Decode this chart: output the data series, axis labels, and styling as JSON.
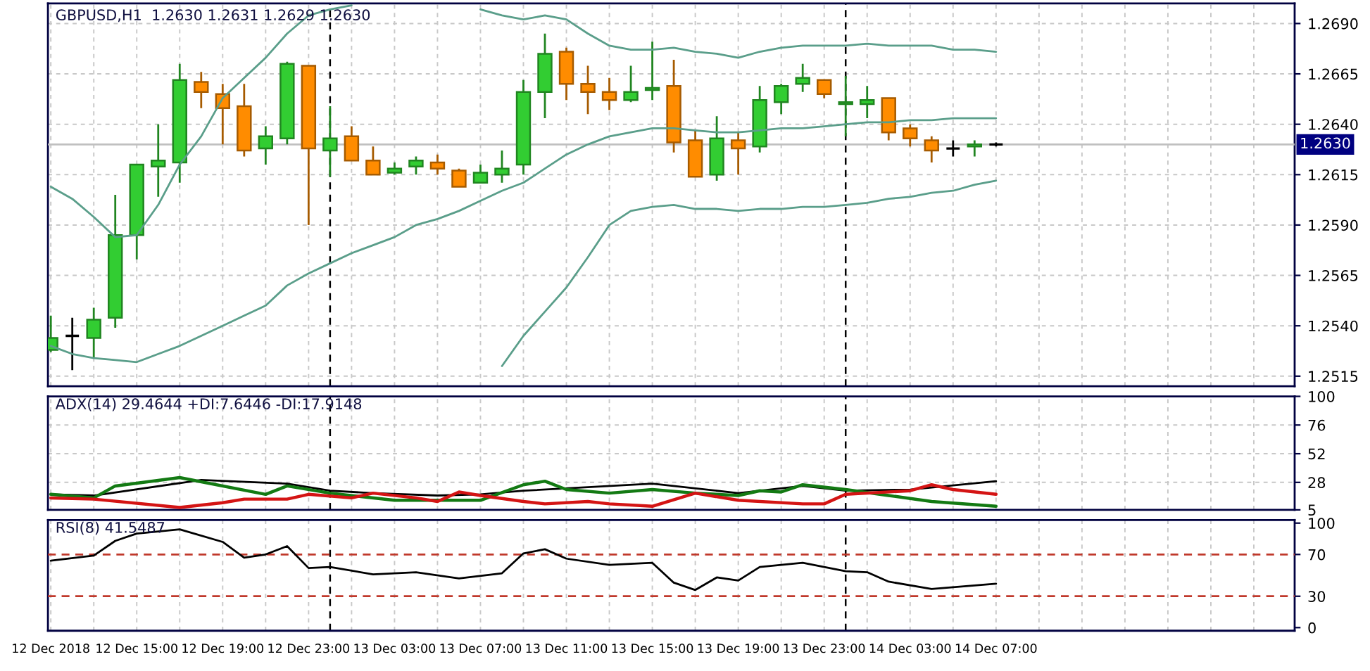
{
  "chart_data": [
    {
      "type": "candlestick",
      "title": "GBPUSD,H1  1.2630 1.2631 1.2629 1.2630",
      "x": [
        "2018-12-12T11:00",
        "2018-12-12T12:00",
        "2018-12-12T13:00",
        "2018-12-12T14:00",
        "2018-12-12T15:00",
        "2018-12-12T16:00",
        "2018-12-12T17:00",
        "2018-12-12T18:00",
        "2018-12-12T19:00",
        "2018-12-12T20:00",
        "2018-12-12T21:00",
        "2018-12-12T22:00",
        "2018-12-12T23:00",
        "2018-12-13T00:00",
        "2018-12-13T01:00",
        "2018-12-13T02:00",
        "2018-12-13T03:00",
        "2018-12-13T04:00",
        "2018-12-13T05:00",
        "2018-12-13T06:00",
        "2018-12-13T07:00",
        "2018-12-13T08:00",
        "2018-12-13T09:00",
        "2018-12-13T10:00",
        "2018-12-13T11:00",
        "2018-12-13T12:00",
        "2018-12-13T13:00",
        "2018-12-13T14:00",
        "2018-12-13T15:00",
        "2018-12-13T16:00",
        "2018-12-13T17:00",
        "2018-12-13T18:00",
        "2018-12-13T19:00",
        "2018-12-13T20:00",
        "2018-12-13T21:00",
        "2018-12-13T22:00",
        "2018-12-13T23:00",
        "2018-12-14T00:00",
        "2018-12-14T01:00",
        "2018-12-14T02:00",
        "2018-12-14T03:00",
        "2018-12-14T04:00",
        "2018-12-14T05:00",
        "2018-12-14T06:00",
        "2018-12-14T07:00"
      ],
      "ohlc": [
        [
          1.2528,
          1.2545,
          1.2527,
          1.2534
        ],
        [
          1.2535,
          1.2544,
          1.2518,
          1.2535
        ],
        [
          1.2534,
          1.2549,
          1.2524,
          1.2543
        ],
        [
          1.2544,
          1.2605,
          1.2539,
          1.2585
        ],
        [
          1.2585,
          1.262,
          1.2573,
          1.262
        ],
        [
          1.2619,
          1.264,
          1.2604,
          1.2622
        ],
        [
          1.2621,
          1.267,
          1.2611,
          1.2662
        ],
        [
          1.2661,
          1.2666,
          1.2648,
          1.2656
        ],
        [
          1.2655,
          1.266,
          1.263,
          1.2648
        ],
        [
          1.2649,
          1.266,
          1.2624,
          1.2627
        ],
        [
          1.2628,
          1.2639,
          1.262,
          1.2634
        ],
        [
          1.2633,
          1.2671,
          1.263,
          1.267
        ],
        [
          1.2669,
          1.2669,
          1.259,
          1.2628
        ],
        [
          1.2627,
          1.2649,
          1.2614,
          1.2633
        ],
        [
          1.2634,
          1.2639,
          1.2622,
          1.2622
        ],
        [
          1.2622,
          1.2629,
          1.2615,
          1.2615
        ],
        [
          1.2616,
          1.2621,
          1.2615,
          1.2618
        ],
        [
          1.2619,
          1.2624,
          1.2615,
          1.2622
        ],
        [
          1.2621,
          1.2625,
          1.2615,
          1.2618
        ],
        [
          1.2617,
          1.2618,
          1.2609,
          1.2609
        ],
        [
          1.2611,
          1.262,
          1.2611,
          1.2616
        ],
        [
          1.2615,
          1.2627,
          1.2611,
          1.2618
        ],
        [
          1.262,
          1.2662,
          1.2615,
          1.2656
        ],
        [
          1.2656,
          1.2685,
          1.2643,
          1.2675
        ],
        [
          1.2676,
          1.2678,
          1.2652,
          1.266
        ],
        [
          1.266,
          1.2669,
          1.2645,
          1.2656
        ],
        [
          1.2656,
          1.2663,
          1.2647,
          1.2652
        ],
        [
          1.2652,
          1.2669,
          1.2651,
          1.2656
        ],
        [
          1.2657,
          1.2681,
          1.2652,
          1.2658
        ],
        [
          1.2659,
          1.2672,
          1.2626,
          1.2631
        ],
        [
          1.2632,
          1.2637,
          1.2614,
          1.2614
        ],
        [
          1.2615,
          1.2644,
          1.2612,
          1.2633
        ],
        [
          1.2632,
          1.2636,
          1.2615,
          1.2628
        ],
        [
          1.2629,
          1.2659,
          1.2626,
          1.2652
        ],
        [
          1.2651,
          1.266,
          1.2645,
          1.2659
        ],
        [
          1.266,
          1.267,
          1.2656,
          1.2663
        ],
        [
          1.2662,
          1.2662,
          1.2653,
          1.2655
        ],
        [
          1.265,
          1.2664,
          1.2634,
          1.2651
        ],
        [
          1.265,
          1.2659,
          1.2643,
          1.2652
        ],
        [
          1.2653,
          1.2653,
          1.2632,
          1.2636
        ],
        [
          1.2638,
          1.264,
          1.2629,
          1.2633
        ],
        [
          1.2632,
          1.2634,
          1.2621,
          1.2627
        ],
        [
          1.2628,
          1.2632,
          1.2624,
          1.2628
        ],
        [
          1.2629,
          1.2632,
          1.2624,
          1.263
        ],
        [
          1.263,
          1.2631,
          1.2629,
          1.263
        ]
      ],
      "colors": [
        "#32cd32",
        "#000000",
        "#32cd32",
        "#32cd32",
        "#32cd32",
        "#32cd32",
        "#32cd32",
        "#ff8c00",
        "#ff8c00",
        "#ff8c00",
        "#32cd32",
        "#32cd32",
        "#ff8c00",
        "#32cd32",
        "#ff8c00",
        "#ff8c00",
        "#32cd32",
        "#32cd32",
        "#ff8c00",
        "#ff8c00",
        "#32cd32",
        "#32cd32",
        "#32cd32",
        "#32cd32",
        "#ff8c00",
        "#ff8c00",
        "#ff8c00",
        "#32cd32",
        "#32cd32",
        "#ff8c00",
        "#ff8c00",
        "#32cd32",
        "#ff8c00",
        "#32cd32",
        "#32cd32",
        "#32cd32",
        "#ff8c00",
        "#32cd32",
        "#32cd32",
        "#ff8c00",
        "#ff8c00",
        "#ff8c00",
        "#000000",
        "#32cd32",
        "#000000"
      ],
      "series": [
        {
          "type": "line",
          "color": "#5a9e8a",
          "values": [
            1.2609,
            1.2603,
            1.2594,
            1.2584,
            1.2585,
            1.26,
            1.262,
            1.2634,
            1.2653,
            1.2663,
            1.2673,
            1.2685,
            1.2694,
            1.2697,
            1.2699,
            null,
            null,
            null,
            null,
            null,
            1.2697,
            1.2694,
            1.2692,
            1.2694,
            1.2692,
            1.2685,
            1.2679,
            1.2677,
            1.2677,
            1.2678,
            1.2676,
            1.2675,
            1.2673,
            1.2676,
            1.2678,
            1.2679,
            1.2679,
            1.2679,
            1.268,
            1.2679,
            1.2679,
            1.2679,
            1.2677,
            1.2677,
            1.2676
          ]
        },
        {
          "type": "line",
          "color": "#5a9e8a",
          "values": [
            1.253,
            1.2526,
            1.2524,
            1.2523,
            1.2522,
            1.2526,
            1.253,
            1.2535,
            1.254,
            1.2545,
            1.255,
            1.256,
            1.2566,
            1.2571,
            1.2576,
            1.258,
            1.2584,
            1.259,
            1.2593,
            1.2597,
            1.2602,
            1.2607,
            1.2611,
            1.2618,
            1.2625,
            1.263,
            1.2634,
            1.2636,
            1.2638,
            1.2638,
            1.2637,
            1.2636,
            1.2636,
            1.2637,
            1.2638,
            1.2638,
            1.2639,
            1.264,
            1.2641,
            1.2641,
            1.2642,
            1.2642,
            1.2643,
            1.2643,
            1.2643
          ]
        },
        {
          "type": "line",
          "color": "#5a9e8a",
          "values": [
            null,
            null,
            null,
            null,
            null,
            null,
            null,
            null,
            null,
            null,
            null,
            null,
            null,
            null,
            null,
            null,
            null,
            null,
            null,
            null,
            null,
            1.252,
            1.2535,
            1.2547,
            1.2559,
            1.2574,
            1.259,
            1.2597,
            1.2599,
            1.26,
            1.2598,
            1.2598,
            1.2597,
            1.2598,
            1.2598,
            1.2599,
            1.2599,
            1.26,
            1.2601,
            1.2603,
            1.2604,
            1.2606,
            1.2607,
            1.261,
            1.2612
          ]
        }
      ],
      "xlim": [
        "2018-12-12T10:52",
        "2018-12-14T20:54"
      ],
      "xticks": [
        {
          "value": "2018-12-12T11:00",
          "label": null
        },
        {
          "value": "2018-12-12T13:00",
          "label": null
        },
        {
          "value": "2018-12-12T15:00",
          "label": null
        },
        {
          "value": "2018-12-12T17:00",
          "label": null
        },
        {
          "value": "2018-12-12T19:00",
          "label": null
        },
        {
          "value": "2018-12-12T21:00",
          "label": null
        },
        {
          "value": "2018-12-12T23:00",
          "label": null
        },
        {
          "value": "2018-12-13T01:00",
          "label": null
        },
        {
          "value": "2018-12-13T03:00",
          "label": null
        },
        {
          "value": "2018-12-13T05:00",
          "label": null
        },
        {
          "value": "2018-12-13T07:00",
          "label": null
        },
        {
          "value": "2018-12-13T09:00",
          "label": null
        },
        {
          "value": "2018-12-13T11:00",
          "label": null
        },
        {
          "value": "2018-12-13T13:00",
          "label": null
        },
        {
          "value": "2018-12-13T15:00",
          "label": null
        },
        {
          "value": "2018-12-13T17:00",
          "label": null
        },
        {
          "value": "2018-12-13T19:00",
          "label": null
        },
        {
          "value": "2018-12-13T21:00",
          "label": null
        },
        {
          "value": "2018-12-13T23:00",
          "label": null
        },
        {
          "value": "2018-12-14T01:00",
          "label": null
        },
        {
          "value": "2018-12-14T03:00",
          "label": null
        },
        {
          "value": "2018-12-14T05:00",
          "label": null
        },
        {
          "value": "2018-12-14T07:00",
          "label": null
        },
        {
          "value": "2018-12-14T09:00",
          "label": null
        },
        {
          "value": "2018-12-14T11:00",
          "label": null
        },
        {
          "value": "2018-12-14T13:00",
          "label": null
        },
        {
          "value": "2018-12-14T15:00",
          "label": null
        },
        {
          "value": "2018-12-14T17:00",
          "label": null
        },
        {
          "value": "2018-12-14T19:00",
          "label": null
        }
      ],
      "ylim": [
        1.251,
        1.27
      ],
      "yticks": [
        {
          "value": 1.2515,
          "label": "1.2515"
        },
        {
          "value": 1.254,
          "label": "1.2540"
        },
        {
          "value": 1.2565,
          "label": "1.2565"
        },
        {
          "value": 1.259,
          "label": "1.2590"
        },
        {
          "value": 1.2615,
          "label": "1.2615"
        },
        {
          "value": 1.264,
          "label": "1.2640"
        },
        {
          "value": 1.2665,
          "label": "1.2665"
        },
        {
          "value": 1.269,
          "label": "1.2690"
        }
      ],
      "ref_lines": [
        {
          "axis": "x",
          "value": "2018-12-13T00:00",
          "color": "#000000",
          "line_style": "dashed"
        },
        {
          "axis": "x",
          "value": "2018-12-14T00:00",
          "color": "#000000",
          "line_style": "dashed"
        },
        {
          "axis": "y",
          "value": 1.263,
          "label": "1.2630",
          "color": "#c0c0c0"
        }
      ],
      "grid": true,
      "tick_labels": "y"
    },
    {
      "type": "line",
      "title": "ADX(14) 29.4644 +DI:7.6446 -DI:17.9148",
      "series": [
        {
          "color": "#000000",
          "x": [
            "2018-12-12T11:00",
            "2018-12-12T13:00",
            "2018-12-12T18:00",
            "2018-12-12T22:00",
            "2018-12-13T00:00",
            "2018-12-13T02:00",
            "2018-12-13T05:00",
            "2018-12-13T07:00",
            "2018-12-13T09:00",
            "2018-12-13T15:00",
            "2018-12-13T19:00",
            "2018-12-13T22:00",
            "2018-12-14T00:00",
            "2018-12-14T03:00",
            "2018-12-14T07:00"
          ],
          "values": [
            18,
            17,
            30,
            27,
            21,
            19,
            17,
            18,
            21,
            27,
            19,
            25,
            21,
            22,
            29
          ]
        },
        {
          "color": "#137a13",
          "x": [
            "2018-12-12T11:00",
            "2018-12-12T13:00",
            "2018-12-12T14:00",
            "2018-12-12T17:00",
            "2018-12-12T21:00",
            "2018-12-12T22:00",
            "2018-12-13T00:00",
            "2018-12-13T03:00",
            "2018-12-13T07:00",
            "2018-12-13T09:00",
            "2018-12-13T10:00",
            "2018-12-13T11:00",
            "2018-12-13T13:00",
            "2018-12-13T15:00",
            "2018-12-13T17:00",
            "2018-12-13T19:00",
            "2018-12-13T20:00",
            "2018-12-13T21:00",
            "2018-12-13T22:00",
            "2018-12-14T00:00",
            "2018-12-14T02:00",
            "2018-12-14T04:00",
            "2018-12-14T07:00"
          ],
          "values": [
            18,
            15,
            25,
            32,
            18,
            25,
            19,
            13,
            13,
            26,
            29,
            22,
            19,
            22,
            19,
            17,
            21,
            20,
            26,
            22,
            17,
            12,
            8
          ]
        },
        {
          "color": "#d41414",
          "x": [
            "2018-12-12T11:00",
            "2018-12-12T13:00",
            "2018-12-12T17:00",
            "2018-12-12T19:00",
            "2018-12-12T20:00",
            "2018-12-12T22:00",
            "2018-12-12T23:00",
            "2018-12-13T01:00",
            "2018-12-13T02:00",
            "2018-12-13T04:00",
            "2018-12-13T05:00",
            "2018-12-13T06:00",
            "2018-12-13T07:00",
            "2018-12-13T09:00",
            "2018-12-13T10:00",
            "2018-12-13T12:00",
            "2018-12-13T13:00",
            "2018-12-13T15:00",
            "2018-12-13T17:00",
            "2018-12-13T19:00",
            "2018-12-13T22:00",
            "2018-12-13T23:00",
            "2018-12-14T00:00",
            "2018-12-14T03:00",
            "2018-12-14T04:00",
            "2018-12-14T05:00",
            "2018-12-14T07:00"
          ],
          "values": [
            15,
            14,
            7,
            11,
            14,
            14,
            18,
            15,
            19,
            15,
            12,
            20,
            17,
            12,
            10,
            12,
            10,
            8,
            19,
            13,
            10,
            10,
            18,
            21,
            26,
            22,
            18
          ]
        }
      ],
      "xlim": [
        "2018-12-12T10:52",
        "2018-12-14T20:54"
      ],
      "xticks": [
        {
          "value": "2018-12-12T11:00",
          "label": null
        },
        {
          "value": "2018-12-12T13:00",
          "label": null
        },
        {
          "value": "2018-12-12T15:00",
          "label": null
        },
        {
          "value": "2018-12-12T17:00",
          "label": null
        },
        {
          "value": "2018-12-12T19:00",
          "label": null
        },
        {
          "value": "2018-12-12T21:00",
          "label": null
        },
        {
          "value": "2018-12-12T23:00",
          "label": null
        },
        {
          "value": "2018-12-13T01:00",
          "label": null
        },
        {
          "value": "2018-12-13T03:00",
          "label": null
        },
        {
          "value": "2018-12-13T05:00",
          "label": null
        },
        {
          "value": "2018-12-13T07:00",
          "label": null
        },
        {
          "value": "2018-12-13T09:00",
          "label": null
        },
        {
          "value": "2018-12-13T11:00",
          "label": null
        },
        {
          "value": "2018-12-13T13:00",
          "label": null
        },
        {
          "value": "2018-12-13T15:00",
          "label": null
        },
        {
          "value": "2018-12-13T17:00",
          "label": null
        },
        {
          "value": "2018-12-13T19:00",
          "label": null
        },
        {
          "value": "2018-12-13T21:00",
          "label": null
        },
        {
          "value": "2018-12-13T23:00",
          "label": null
        },
        {
          "value": "2018-12-14T01:00",
          "label": null
        },
        {
          "value": "2018-12-14T03:00",
          "label": null
        },
        {
          "value": "2018-12-14T05:00",
          "label": null
        },
        {
          "value": "2018-12-14T07:00",
          "label": null
        },
        {
          "value": "2018-12-14T09:00",
          "label": null
        },
        {
          "value": "2018-12-14T11:00",
          "label": null
        },
        {
          "value": "2018-12-14T13:00",
          "label": null
        },
        {
          "value": "2018-12-14T15:00",
          "label": null
        },
        {
          "value": "2018-12-14T17:00",
          "label": null
        },
        {
          "value": "2018-12-14T19:00",
          "label": null
        }
      ],
      "ylim": [
        5,
        100
      ],
      "yticks": [
        100,
        76,
        52,
        28,
        5
      ],
      "ref_lines": [
        {
          "axis": "x",
          "value": "2018-12-13T00:00",
          "color": "#000000",
          "line_style": "dashed"
        },
        {
          "axis": "x",
          "value": "2018-12-14T00:00",
          "color": "#000000",
          "line_style": "dashed"
        }
      ],
      "grid": true,
      "tick_labels": "y"
    },
    {
      "type": "line",
      "title": "RSI(8) 41.5487",
      "series": [
        {
          "color": "#000000",
          "x": [
            "2018-12-12T11:00",
            "2018-12-12T13:00",
            "2018-12-12T14:00",
            "2018-12-12T15:00",
            "2018-12-12T17:00",
            "2018-12-12T19:00",
            "2018-12-12T20:00",
            "2018-12-12T21:00",
            "2018-12-12T22:00",
            "2018-12-12T23:00",
            "2018-12-13T00:00",
            "2018-12-13T02:00",
            "2018-12-13T04:00",
            "2018-12-13T06:00",
            "2018-12-13T08:00",
            "2018-12-13T09:00",
            "2018-12-13T10:00",
            "2018-12-13T11:00",
            "2018-12-13T13:00",
            "2018-12-13T15:00",
            "2018-12-13T16:00",
            "2018-12-13T17:00",
            "2018-12-13T18:00",
            "2018-12-13T19:00",
            "2018-12-13T20:00",
            "2018-12-13T22:00",
            "2018-12-14T00:00",
            "2018-12-14T01:00",
            "2018-12-14T02:00",
            "2018-12-14T04:00",
            "2018-12-14T07:00"
          ],
          "values": [
            64,
            69,
            83,
            90,
            94,
            82,
            67,
            70,
            78,
            57,
            58,
            51,
            53,
            47,
            52,
            71,
            75,
            66,
            60,
            62,
            43,
            36,
            48,
            45,
            58,
            62,
            54,
            53,
            44,
            37,
            42
          ]
        }
      ],
      "xlim": [
        "2018-12-12T10:52",
        "2018-12-14T20:54"
      ],
      "xticks": [
        {
          "value": "2018-12-12T11:00",
          "label": "12 Dec 2018"
        },
        {
          "value": "2018-12-12T13:00",
          "label": null
        },
        {
          "value": "2018-12-12T15:00",
          "label": "12 Dec 15:00"
        },
        {
          "value": "2018-12-12T17:00",
          "label": null
        },
        {
          "value": "2018-12-12T19:00",
          "label": "12 Dec 19:00"
        },
        {
          "value": "2018-12-12T21:00",
          "label": null
        },
        {
          "value": "2018-12-12T23:00",
          "label": "12 Dec 23:00"
        },
        {
          "value": "2018-12-13T01:00",
          "label": null
        },
        {
          "value": "2018-12-13T03:00",
          "label": "13 Dec 03:00"
        },
        {
          "value": "2018-12-13T05:00",
          "label": null
        },
        {
          "value": "2018-12-13T07:00",
          "label": "13 Dec 07:00"
        },
        {
          "value": "2018-12-13T09:00",
          "label": null
        },
        {
          "value": "2018-12-13T11:00",
          "label": "13 Dec 11:00"
        },
        {
          "value": "2018-12-13T13:00",
          "label": null
        },
        {
          "value": "2018-12-13T15:00",
          "label": "13 Dec 15:00"
        },
        {
          "value": "2018-12-13T17:00",
          "label": null
        },
        {
          "value": "2018-12-13T19:00",
          "label": "13 Dec 19:00"
        },
        {
          "value": "2018-12-13T21:00",
          "label": null
        },
        {
          "value": "2018-12-13T23:00",
          "label": "13 Dec 23:00"
        },
        {
          "value": "2018-12-14T01:00",
          "label": null
        },
        {
          "value": "2018-12-14T03:00",
          "label": "14 Dec 03:00"
        },
        {
          "value": "2018-12-14T05:00",
          "label": null
        },
        {
          "value": "2018-12-14T07:00",
          "label": "14 Dec 07:00"
        },
        {
          "value": "2018-12-14T09:00",
          "label": null
        },
        {
          "value": "2018-12-14T11:00",
          "label": null
        },
        {
          "value": "2018-12-14T13:00",
          "label": null
        },
        {
          "value": "2018-12-14T15:00",
          "label": null
        },
        {
          "value": "2018-12-14T17:00",
          "label": null
        },
        {
          "value": "2018-12-14T19:00",
          "label": null
        }
      ],
      "ylim": [
        -3,
        103
      ],
      "yticks": [
        100,
        70,
        30,
        0
      ],
      "grid": "x",
      "ref_lines": [
        {
          "axis": "y",
          "value": 70,
          "color": "#c0392b",
          "line_style": "dashed"
        },
        {
          "axis": "y",
          "value": 30,
          "color": "#c0392b",
          "line_style": "dashed"
        },
        {
          "axis": "x",
          "value": "2018-12-13T00:00",
          "color": "#000000",
          "line_style": "dashed"
        },
        {
          "axis": "x",
          "value": "2018-12-14T00:00",
          "color": "#000000",
          "line_style": "dashed"
        }
      ]
    }
  ]
}
